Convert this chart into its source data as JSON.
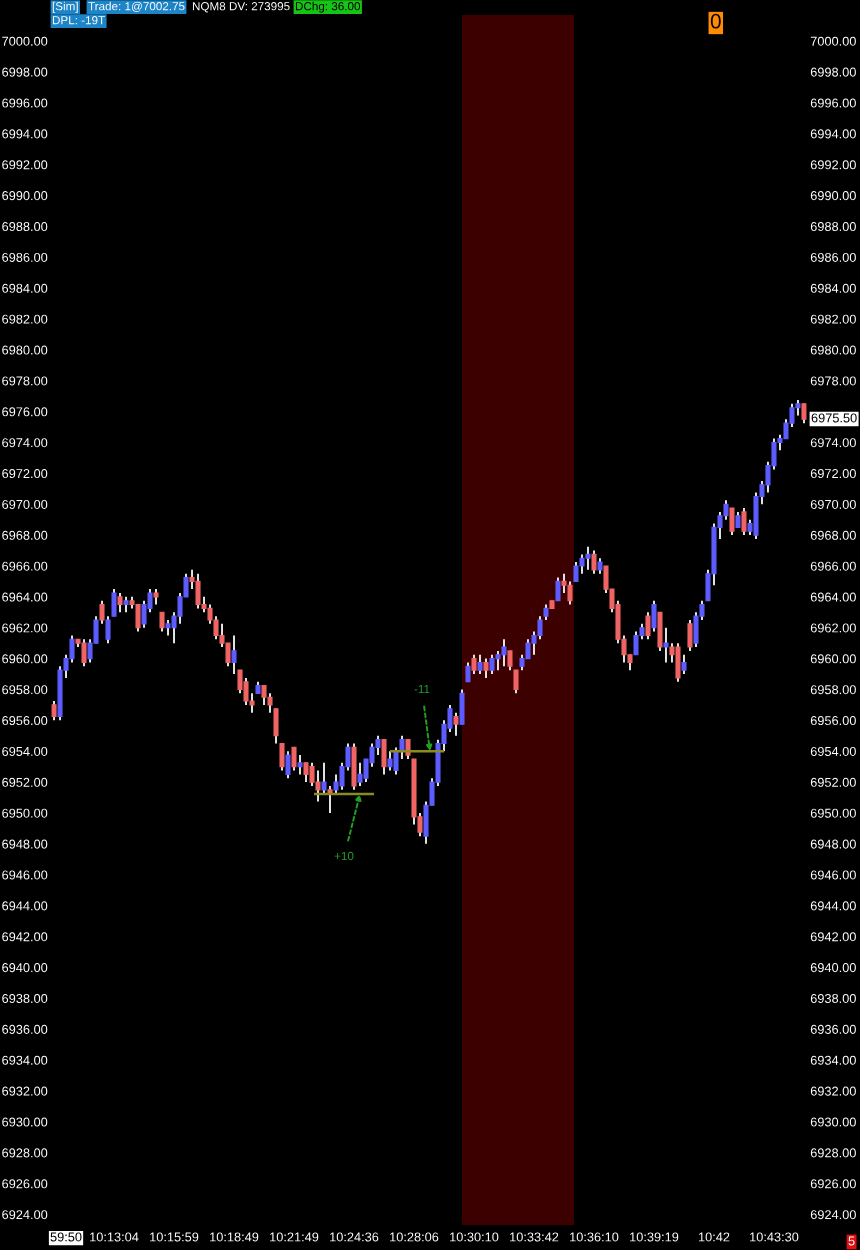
{
  "chart_data": {
    "type": "candlestick",
    "categories": [
      null,
      null,
      "59:50",
      null,
      null,
      null,
      null,
      null,
      null,
      null,
      "10:13:04",
      null,
      null,
      null,
      null,
      null,
      null,
      null,
      null,
      null,
      "10:15:59",
      null,
      null,
      null,
      null,
      null,
      null,
      null,
      null,
      null,
      "10:18:49",
      null,
      null,
      null,
      null,
      null,
      null,
      null,
      null,
      null,
      "10:21:49",
      null,
      null,
      null,
      null,
      null,
      null,
      null,
      null,
      null,
      "10:24:36",
      null,
      null,
      null,
      null,
      null,
      null,
      null,
      null,
      null,
      "10:28:06",
      null,
      null,
      null,
      null,
      null,
      null,
      null,
      null,
      null,
      "10:30:10",
      null,
      null,
      null,
      null,
      null,
      null,
      null,
      null,
      null,
      "10:33:42",
      null,
      null,
      null,
      null,
      null,
      null,
      null,
      null,
      null,
      "10:36:10",
      null,
      null,
      null,
      null,
      null,
      null,
      null,
      null,
      null,
      "10:39:19",
      null,
      null,
      null,
      null,
      null,
      null,
      null,
      null,
      null,
      "10:42",
      null,
      null,
      null,
      null,
      null,
      null,
      null,
      null,
      null,
      "10:43:30",
      null,
      null,
      null,
      null,
      null
    ],
    "ohlc": [
      [
        6957.0,
        6957.25,
        6956.0,
        6956.25
      ],
      [
        6956.25,
        6959.5,
        6956.0,
        6959.25
      ],
      [
        6959.25,
        6960.25,
        6958.75,
        6960.0
      ],
      [
        6960.0,
        6961.5,
        6959.75,
        6961.25
      ],
      [
        6961.25,
        6961.25,
        6960.75,
        6961.0
      ],
      [
        6961.0,
        6961.25,
        6959.5,
        6959.75
      ],
      [
        6960.0,
        6961.25,
        6959.75,
        6961.0
      ],
      [
        6961.0,
        6962.75,
        6961.0,
        6962.5
      ],
      [
        6963.5,
        6963.75,
        6962.25,
        6962.5
      ],
      [
        6961.25,
        6962.75,
        6961.0,
        6962.5
      ],
      [
        6962.75,
        6964.5,
        6962.75,
        6964.25
      ],
      [
        6964.0,
        6964.25,
        6963.0,
        6963.5
      ],
      [
        6963.5,
        6964.0,
        6963.0,
        6963.75
      ],
      [
        6963.75,
        6964.0,
        6963.25,
        6963.5
      ],
      [
        6963.5,
        6963.5,
        6961.75,
        6962.0
      ],
      [
        6962.25,
        6963.75,
        6962.0,
        6963.5
      ],
      [
        6963.25,
        6964.5,
        6963.0,
        6964.25
      ],
      [
        6964.25,
        6964.5,
        6963.5,
        6964.0
      ],
      [
        6963.0,
        6963.0,
        6961.75,
        6962.0
      ],
      [
        6962.0,
        6962.5,
        6961.5,
        6962.25
      ],
      [
        6962.0,
        6963.0,
        6961.0,
        6962.75
      ],
      [
        6962.75,
        6964.25,
        6962.25,
        6964.0
      ],
      [
        6964.0,
        6965.5,
        6964.0,
        6965.25
      ],
      [
        6965.25,
        6965.75,
        6964.5,
        6965.0
      ],
      [
        6965.0,
        6965.5,
        6963.25,
        6963.5
      ],
      [
        6963.5,
        6964.0,
        6963.0,
        6963.25
      ],
      [
        6963.25,
        6963.5,
        6962.25,
        6962.5
      ],
      [
        6962.5,
        6962.75,
        6961.25,
        6961.5
      ],
      [
        6961.5,
        6962.25,
        6960.75,
        6961.0
      ],
      [
        6961.0,
        6961.0,
        6959.5,
        6959.75
      ],
      [
        6959.75,
        6961.5,
        6959.0,
        6960.5
      ],
      [
        6959.25,
        6959.25,
        6957.75,
        6958.0
      ],
      [
        6958.5,
        6958.75,
        6957.0,
        6957.25
      ],
      [
        6957.25,
        6957.75,
        6956.5,
        6957.0
      ],
      [
        6957.75,
        6958.5,
        6957.75,
        6958.25
      ],
      [
        6958.25,
        6958.25,
        6957.0,
        6957.5
      ],
      [
        6957.5,
        6957.75,
        6956.5,
        6957.0
      ],
      [
        6956.75,
        6956.75,
        6954.5,
        6955.0
      ],
      [
        6954.5,
        6954.5,
        6952.75,
        6953.0
      ],
      [
        6952.5,
        6954.0,
        6952.25,
        6953.75
      ],
      [
        6954.25,
        6954.25,
        6952.75,
        6953.0
      ],
      [
        6953.0,
        6953.75,
        6952.5,
        6953.25
      ],
      [
        6953.25,
        6953.25,
        6952.0,
        6952.5
      ],
      [
        6953.0,
        6953.25,
        6951.75,
        6952.0
      ],
      [
        6952.0,
        6952.75,
        6950.75,
        6951.5
      ],
      [
        6951.5,
        6953.25,
        6951.25,
        6952.0
      ],
      [
        6951.5,
        6951.75,
        6950.0,
        6951.25
      ],
      [
        6951.5,
        6952.5,
        6951.25,
        6952.0
      ],
      [
        6951.75,
        6953.25,
        6951.5,
        6953.0
      ],
      [
        6953.0,
        6954.5,
        6952.75,
        6954.25
      ],
      [
        6954.25,
        6954.5,
        6951.5,
        6951.75
      ],
      [
        6952.0,
        6953.25,
        6951.75,
        6952.5
      ],
      [
        6952.25,
        6953.5,
        6952.0,
        6953.5
      ],
      [
        6953.25,
        6954.5,
        6953.0,
        6954.25
      ],
      [
        6954.25,
        6955.0,
        6953.75,
        6954.75
      ],
      [
        6954.75,
        6954.75,
        6952.5,
        6953.0
      ],
      [
        6953.0,
        6954.0,
        6952.75,
        6953.5
      ],
      [
        6952.75,
        6954.25,
        6952.5,
        6954.0
      ],
      [
        6954.0,
        6955.0,
        6953.5,
        6954.75
      ],
      [
        6954.75,
        6954.75,
        6953.5,
        6953.75
      ],
      [
        6953.5,
        6953.5,
        6949.25,
        6949.75
      ],
      [
        6949.75,
        6950.0,
        6948.5,
        6948.75
      ],
      [
        6948.5,
        6950.75,
        6948.0,
        6950.5
      ],
      [
        6950.5,
        6952.25,
        6950.5,
        6952.0
      ],
      [
        6952.0,
        6954.75,
        6951.75,
        6954.5
      ],
      [
        6954.5,
        6956.0,
        6954.0,
        6955.75
      ],
      [
        6955.5,
        6957.0,
        6955.25,
        6956.75
      ],
      [
        6956.25,
        6956.5,
        6955.0,
        6955.75
      ],
      [
        6955.75,
        6958.0,
        6955.75,
        6957.75
      ],
      [
        6958.5,
        6959.75,
        6958.5,
        6959.5
      ],
      [
        6960.0,
        6960.25,
        6959.0,
        6959.25
      ],
      [
        6959.25,
        6960.25,
        6959.0,
        6959.75
      ],
      [
        6959.75,
        6960.0,
        6958.75,
        6959.25
      ],
      [
        6959.25,
        6960.25,
        6959.0,
        6960.0
      ],
      [
        6960.0,
        6960.5,
        6959.25,
        6960.25
      ],
      [
        6960.25,
        6961.25,
        6959.5,
        6960.75
      ],
      [
        6960.5,
        6960.5,
        6959.25,
        6959.5
      ],
      [
        6959.25,
        6959.25,
        6957.75,
        6958.0
      ],
      [
        6959.5,
        6960.25,
        6959.25,
        6960.0
      ],
      [
        6960.0,
        6961.25,
        6960.0,
        6961.0
      ],
      [
        6961.0,
        6961.75,
        6960.25,
        6961.5
      ],
      [
        6961.5,
        6962.75,
        6961.25,
        6962.5
      ],
      [
        6962.75,
        6963.5,
        6962.5,
        6963.25
      ],
      [
        6963.75,
        6963.75,
        6963.25,
        6963.25
      ],
      [
        6963.75,
        6965.25,
        6963.75,
        6965.0
      ],
      [
        6965.0,
        6965.5,
        6964.25,
        6964.75
      ],
      [
        6964.75,
        6965.0,
        6963.5,
        6963.75
      ],
      [
        6965.0,
        6966.25,
        6965.0,
        6966.0
      ],
      [
        6966.0,
        6966.75,
        6965.5,
        6966.5
      ],
      [
        6966.5,
        6967.25,
        6965.75,
        6966.75
      ],
      [
        6966.75,
        6967.0,
        6965.5,
        6965.75
      ],
      [
        6965.75,
        6966.5,
        6965.5,
        6966.25
      ],
      [
        6966.0,
        6966.0,
        6964.25,
        6964.5
      ],
      [
        6964.5,
        6964.5,
        6963.0,
        6963.25
      ],
      [
        6963.5,
        6963.75,
        6961.0,
        6961.25
      ],
      [
        6961.25,
        6961.5,
        6959.75,
        6960.25
      ],
      [
        6960.25,
        6960.25,
        6959.25,
        6959.75
      ],
      [
        6960.25,
        6961.75,
        6960.25,
        6961.5
      ],
      [
        6961.5,
        6962.25,
        6961.25,
        6962.0
      ],
      [
        6962.75,
        6963.0,
        6961.25,
        6961.5
      ],
      [
        6962.0,
        6963.75,
        6961.75,
        6963.5
      ],
      [
        6963.0,
        6963.0,
        6960.5,
        6960.75
      ],
      [
        6960.75,
        6962.0,
        6959.75,
        6961.0
      ],
      [
        6960.75,
        6961.0,
        6959.75,
        6960.25
      ],
      [
        6960.75,
        6961.0,
        6958.5,
        6958.75
      ],
      [
        6959.25,
        6960.25,
        6959.0,
        6959.75
      ],
      [
        6962.25,
        6962.5,
        6960.5,
        6960.75
      ],
      [
        6961.0,
        6963.0,
        6960.75,
        6962.75
      ],
      [
        6962.75,
        6963.75,
        6962.5,
        6963.5
      ],
      [
        6963.75,
        6965.75,
        6963.75,
        6965.5
      ],
      [
        6965.5,
        6968.75,
        6964.75,
        6968.5
      ],
      [
        6968.5,
        6969.5,
        6967.75,
        6969.25
      ],
      [
        6969.25,
        6970.25,
        6969.0,
        6970.0
      ],
      [
        6969.75,
        6969.75,
        6968.0,
        6968.25
      ],
      [
        6968.5,
        6969.5,
        6968.5,
        6969.25
      ],
      [
        6969.5,
        6969.75,
        6968.0,
        6968.25
      ],
      [
        6968.25,
        6969.0,
        6968.0,
        6968.75
      ],
      [
        6968.0,
        6970.75,
        6967.75,
        6970.5
      ],
      [
        6970.5,
        6971.5,
        6970.0,
        6971.25
      ],
      [
        6971.25,
        6972.75,
        6970.75,
        6972.5
      ],
      [
        6972.5,
        6974.25,
        6972.25,
        6974.0
      ],
      [
        6974.0,
        6974.5,
        6973.5,
        6974.25
      ],
      [
        6974.25,
        6975.5,
        6974.25,
        6975.25
      ],
      [
        6975.25,
        6976.5,
        6975.0,
        6976.25
      ],
      [
        6976.25,
        6976.75,
        6975.75,
        6976.5
      ],
      [
        6976.5,
        6976.5,
        6975.25,
        6975.5
      ]
    ],
    "colors": [
      "#f06464",
      "#5c5cff",
      "#5c5cff",
      "#5c5cff",
      "#f06464",
      "#f06464",
      "#5c5cff",
      "#5c5cff",
      "#f06464",
      "#5c5cff",
      "#5c5cff",
      "#f06464",
      "#5c5cff",
      "#f06464",
      "#f06464",
      "#5c5cff",
      "#5c5cff",
      "#f06464",
      "#f06464",
      "#5c5cff",
      "#5c5cff",
      "#5c5cff",
      "#5c5cff",
      "#f06464",
      "#f06464",
      "#f06464",
      "#f06464",
      "#f06464",
      "#f06464",
      "#f06464",
      "#5c5cff",
      "#f06464",
      "#f06464",
      "#f06464",
      "#5c5cff",
      "#f06464",
      "#f06464",
      "#f06464",
      "#f06464",
      "#5c5cff",
      "#f06464",
      "#5c5cff",
      "#f06464",
      "#f06464",
      "#f06464",
      "#5c5cff",
      "#f06464",
      "#5c5cff",
      "#5c5cff",
      "#5c5cff",
      "#f06464",
      "#5c5cff",
      "#5c5cff",
      "#5c5cff",
      "#5c5cff",
      "#f06464",
      "#5c5cff",
      "#5c5cff",
      "#5c5cff",
      "#f06464",
      "#f06464",
      "#f06464",
      "#5c5cff",
      "#5c5cff",
      "#5c5cff",
      "#5c5cff",
      "#5c5cff",
      "#f06464",
      "#5c5cff",
      "#5c5cff",
      "#f06464",
      "#5c5cff",
      "#f06464",
      "#5c5cff",
      "#5c5cff",
      "#5c5cff",
      "#f06464",
      "#f06464",
      "#5c5cff",
      "#5c5cff",
      "#5c5cff",
      "#5c5cff",
      "#5c5cff",
      "#f06464",
      "#5c5cff",
      "#f06464",
      "#f06464",
      "#5c5cff",
      "#5c5cff",
      "#5c5cff",
      "#f06464",
      "#5c5cff",
      "#f06464",
      "#f06464",
      "#f06464",
      "#f06464",
      "#f06464",
      "#5c5cff",
      "#5c5cff",
      "#f06464",
      "#5c5cff",
      "#f06464",
      "#5c5cff",
      "#f06464",
      "#f06464",
      "#5c5cff",
      "#f06464",
      "#5c5cff",
      "#5c5cff",
      "#5c5cff",
      "#5c5cff",
      "#5c5cff",
      "#5c5cff",
      "#f06464",
      "#5c5cff",
      "#f06464",
      "#5c5cff",
      "#5c5cff",
      "#5c5cff",
      "#5c5cff",
      "#5c5cff",
      "#5c5cff",
      "#5c5cff",
      "#5c5cff",
      "#5c5cff",
      "#f06464"
    ],
    "ylim": [
      6923.25,
      7001.75
    ],
    "yticks": [
      {
        "value": 6924,
        "label": "6924.00"
      },
      {
        "value": 6926,
        "label": "6926.00"
      },
      {
        "value": 6928,
        "label": "6928.00"
      },
      {
        "value": 6930,
        "label": "6930.00"
      },
      {
        "value": 6932,
        "label": "6932.00"
      },
      {
        "value": 6934,
        "label": "6934.00"
      },
      {
        "value": 6936,
        "label": "6936.00"
      },
      {
        "value": 6938,
        "label": "6938.00"
      },
      {
        "value": 6940,
        "label": "6940.00"
      },
      {
        "value": 6942,
        "label": "6942.00"
      },
      {
        "value": 6944,
        "label": "6944.00"
      },
      {
        "value": 6946,
        "label": "6946.00"
      },
      {
        "value": 6948,
        "label": "6948.00"
      },
      {
        "value": 6950,
        "label": "6950.00"
      },
      {
        "value": 6952,
        "label": "6952.00"
      },
      {
        "value": 6954,
        "label": "6954.00"
      },
      {
        "value": 6956,
        "label": "6956.00"
      },
      {
        "value": 6958,
        "label": "6958.00"
      },
      {
        "value": 6960,
        "label": "6960.00"
      },
      {
        "value": 6962,
        "label": "6962.00"
      },
      {
        "value": 6964,
        "label": "6964.00"
      },
      {
        "value": 6966,
        "label": "6966.00"
      },
      {
        "value": 6968,
        "label": "6968.00"
      },
      {
        "value": 6970,
        "label": "6970.00"
      },
      {
        "value": 6972,
        "label": "6972.00"
      },
      {
        "value": 6974,
        "label": "6974.00"
      },
      {
        "value": 6976,
        "label": "6976.00"
      },
      {
        "value": 6978,
        "label": "6978.00"
      },
      {
        "value": 6980,
        "label": "6980.00"
      },
      {
        "value": 6982,
        "label": "6982.00"
      },
      {
        "value": 6984,
        "label": "6984.00"
      },
      {
        "value": 6986,
        "label": "6986.00"
      },
      {
        "value": 6988,
        "label": "6988.00"
      },
      {
        "value": 6990,
        "label": "6990.00"
      },
      {
        "value": 6992,
        "label": "6992.00"
      },
      {
        "value": 6994,
        "label": "6994.00"
      },
      {
        "value": 6996,
        "label": "6996.00"
      },
      {
        "value": 6998,
        "label": "6998.00"
      },
      {
        "value": 7000,
        "label": "7000.00"
      }
    ],
    "y2lim": [
      6923.25,
      7001.75
    ],
    "y2ticks": [
      {
        "value": 6924,
        "label": "6924.00"
      },
      {
        "value": 6926,
        "label": "6926.00"
      },
      {
        "value": 6928,
        "label": "6928.00"
      },
      {
        "value": 6930,
        "label": "6930.00"
      },
      {
        "value": 6932,
        "label": "6932.00"
      },
      {
        "value": 6934,
        "label": "6934.00"
      },
      {
        "value": 6936,
        "label": "6936.00"
      },
      {
        "value": 6938,
        "label": "6938.00"
      },
      {
        "value": 6940,
        "label": "6940.00"
      },
      {
        "value": 6942,
        "label": "6942.00"
      },
      {
        "value": 6944,
        "label": "6944.00"
      },
      {
        "value": 6946,
        "label": "6946.00"
      },
      {
        "value": 6948,
        "label": "6948.00"
      },
      {
        "value": 6950,
        "label": "6950.00"
      },
      {
        "value": 6952,
        "label": "6952.00"
      },
      {
        "value": 6954,
        "label": "6954.00"
      },
      {
        "value": 6956,
        "label": "6956.00"
      },
      {
        "value": 6958,
        "label": "6958.00"
      },
      {
        "value": 6960,
        "label": "6960.00"
      },
      {
        "value": 6962,
        "label": "6962.00"
      },
      {
        "value": 6964,
        "label": "6964.00"
      },
      {
        "value": 6966,
        "label": "6966.00"
      },
      {
        "value": 6968,
        "label": "6968.00"
      },
      {
        "value": 6970,
        "label": "6970.00"
      },
      {
        "value": 6972,
        "label": "6972.00"
      },
      {
        "value": 6974,
        "label": "6974.00"
      },
      {
        "value": 6978,
        "label": "6978.00"
      },
      {
        "value": 6980,
        "label": "6980.00"
      },
      {
        "value": 6982,
        "label": "6982.00"
      },
      {
        "value": 6984,
        "label": "6984.00"
      },
      {
        "value": 6986,
        "label": "6986.00"
      },
      {
        "value": 6988,
        "label": "6988.00"
      },
      {
        "value": 6990,
        "label": "6990.00"
      },
      {
        "value": 6992,
        "label": "6992.00"
      },
      {
        "value": 6994,
        "label": "6994.00"
      },
      {
        "value": 6996,
        "label": "6996.00"
      },
      {
        "value": 6998,
        "label": "6998.00"
      },
      {
        "value": 7000,
        "label": "7000.00"
      }
    ],
    "annotations": [
      "+10",
      {
        "text": "-11",
        "y": 6954.0
      },
      "6975.50",
      "[Sim]",
      "Trade: 1@7002.75",
      "NQM8 DV: 273995",
      "DChg: 36.00",
      "DPL: -19T",
      "0",
      "5"
    ]
  }
}
